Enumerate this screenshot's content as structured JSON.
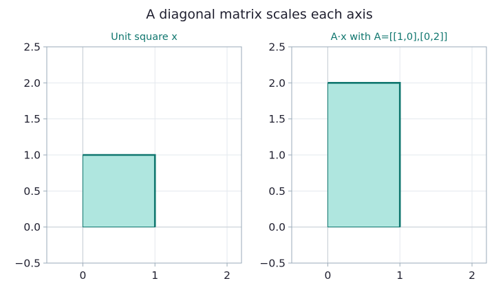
{
  "figure": {
    "title": "A diagonal matrix scales each axis"
  },
  "colors": {
    "edge": "#0f766e",
    "fill": "#afe6df",
    "grid": "#e3e8ee",
    "axis_line": "#cbd2d9",
    "frame": "#9aaab8",
    "subtitle": "#0f766e",
    "text": "#1e1e2e"
  },
  "chart_data": [
    {
      "type": "area",
      "title": "Unit square x",
      "xlabel": "",
      "ylabel": "",
      "xlim": [
        -0.5,
        2.2
      ],
      "ylim": [
        -0.5,
        2.5
      ],
      "xticks": [
        0,
        1,
        2
      ],
      "xtick_labels": [
        "0",
        "1",
        "2"
      ],
      "yticks": [
        -0.5,
        0.0,
        0.5,
        1.0,
        1.5,
        2.0,
        2.5
      ],
      "ytick_labels": [
        "−0.5",
        "0.0",
        "0.5",
        "1.0",
        "1.5",
        "2.0",
        "2.5"
      ],
      "grid": true,
      "polygon": [
        [
          0,
          0
        ],
        [
          1,
          0
        ],
        [
          1,
          1
        ],
        [
          0,
          1
        ]
      ]
    },
    {
      "type": "area",
      "title": "A·x  with  A=[[1,0],[0,2]]",
      "xlabel": "",
      "ylabel": "",
      "xlim": [
        -0.5,
        2.2
      ],
      "ylim": [
        -0.5,
        2.5
      ],
      "xticks": [
        0,
        1,
        2
      ],
      "xtick_labels": [
        "0",
        "1",
        "2"
      ],
      "yticks": [
        -0.5,
        0.0,
        0.5,
        1.0,
        1.5,
        2.0,
        2.5
      ],
      "ytick_labels": [
        "−0.5",
        "0.0",
        "0.5",
        "1.0",
        "1.5",
        "2.0",
        "2.5"
      ],
      "grid": true,
      "polygon": [
        [
          0,
          0
        ],
        [
          1,
          0
        ],
        [
          1,
          2
        ],
        [
          0,
          2
        ]
      ]
    }
  ]
}
